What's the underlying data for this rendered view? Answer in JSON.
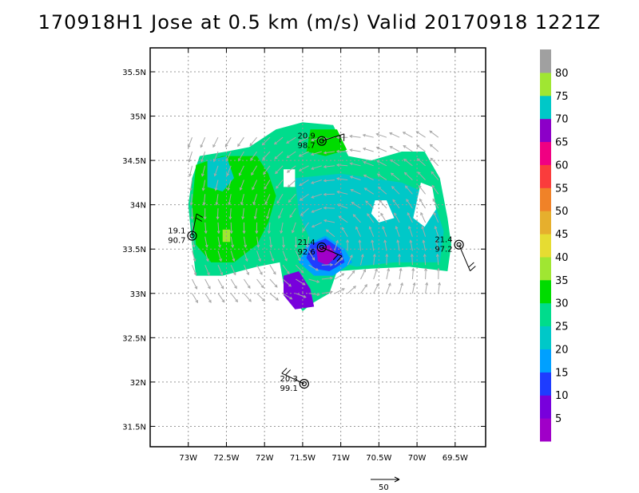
{
  "chart_data": {
    "type": "heatmap",
    "title": "170918H1 Jose at 0.5 km (m/s) Valid 20170918 1221Z",
    "xlim": [
      -73.5,
      -69.1
    ],
    "ylim": [
      31.27,
      35.77
    ],
    "x_ticks": [
      {
        "value": -73.0,
        "label": "73W"
      },
      {
        "value": -72.5,
        "label": "72.5W"
      },
      {
        "value": -72.0,
        "label": "72W"
      },
      {
        "value": -71.5,
        "label": "71.5W"
      },
      {
        "value": -71.0,
        "label": "71W"
      },
      {
        "value": -70.5,
        "label": "70.5W"
      },
      {
        "value": -70.0,
        "label": "70W"
      },
      {
        "value": -69.5,
        "label": "69.5W"
      }
    ],
    "y_ticks": [
      {
        "value": 35.5,
        "label": "35.5N"
      },
      {
        "value": 35.0,
        "label": "35N"
      },
      {
        "value": 34.5,
        "label": "34.5N"
      },
      {
        "value": 34.0,
        "label": "34N"
      },
      {
        "value": 33.5,
        "label": "33.5N"
      },
      {
        "value": 33.0,
        "label": "33N"
      },
      {
        "value": 32.5,
        "label": "32.5N"
      },
      {
        "value": 32.0,
        "label": "32N"
      },
      {
        "value": 31.5,
        "label": "31.5N"
      }
    ],
    "grid": true,
    "colorbar": {
      "labels": [
        "5",
        "10",
        "15",
        "20",
        "25",
        "30",
        "35",
        "40",
        "45",
        "50",
        "55",
        "60",
        "65",
        "70",
        "75",
        "80"
      ],
      "colors": [
        "#a000c8",
        "#7800dc",
        "#1e3cff",
        "#00a0ff",
        "#00c8c8",
        "#00dc8c",
        "#00dc00",
        "#a0e632",
        "#e6dc32",
        "#e6af2d",
        "#f08228",
        "#fa3c3c",
        "#f00082",
        "#8c00c8",
        "#00c8c8",
        "#a0e632",
        "#a0a0a0"
      ]
    },
    "regions": [
      {
        "speed_class": 30,
        "polygon": [
          [
            -72.85,
            34.55
          ],
          [
            -72.5,
            34.6
          ],
          [
            -72.2,
            34.65
          ],
          [
            -71.85,
            34.85
          ],
          [
            -71.5,
            34.93
          ],
          [
            -71.1,
            34.9
          ],
          [
            -70.9,
            34.55
          ],
          [
            -70.6,
            34.5
          ],
          [
            -70.2,
            34.6
          ],
          [
            -69.9,
            34.6
          ],
          [
            -69.7,
            34.3
          ],
          [
            -69.6,
            33.85
          ],
          [
            -69.55,
            33.55
          ],
          [
            -69.6,
            33.25
          ],
          [
            -70.1,
            33.3
          ],
          [
            -70.6,
            33.28
          ],
          [
            -71.05,
            33.25
          ],
          [
            -71.15,
            33.0
          ],
          [
            -71.35,
            32.9
          ],
          [
            -71.5,
            32.8
          ],
          [
            -71.75,
            33.1
          ],
          [
            -71.8,
            33.35
          ],
          [
            -72.1,
            33.3
          ],
          [
            -72.55,
            33.2
          ],
          [
            -72.9,
            33.2
          ],
          [
            -72.95,
            33.55
          ],
          [
            -73.0,
            34.0
          ],
          [
            -72.95,
            34.3
          ]
        ]
      },
      {
        "speed_class": 25,
        "polygon": [
          [
            -71.6,
            34.3
          ],
          [
            -71.0,
            34.35
          ],
          [
            -70.6,
            34.3
          ],
          [
            -70.2,
            34.25
          ],
          [
            -69.8,
            34.1
          ],
          [
            -69.65,
            33.7
          ],
          [
            -69.7,
            33.35
          ],
          [
            -70.3,
            33.35
          ],
          [
            -70.8,
            33.3
          ],
          [
            -71.2,
            33.4
          ],
          [
            -71.4,
            33.6
          ],
          [
            -71.55,
            33.9
          ]
        ]
      },
      {
        "speed_class": 35,
        "polygon": [
          [
            -72.9,
            34.45
          ],
          [
            -72.55,
            34.55
          ],
          [
            -72.1,
            34.55
          ],
          [
            -71.95,
            34.35
          ],
          [
            -71.85,
            34.1
          ],
          [
            -71.95,
            33.8
          ],
          [
            -72.1,
            33.55
          ],
          [
            -72.4,
            33.35
          ],
          [
            -72.7,
            33.35
          ],
          [
            -72.9,
            33.55
          ],
          [
            -72.95,
            34.0
          ]
        ]
      },
      {
        "speed_class": 35,
        "polygon": [
          [
            -71.4,
            34.85
          ],
          [
            -71.05,
            34.85
          ],
          [
            -70.92,
            34.62
          ],
          [
            -71.2,
            34.55
          ],
          [
            -71.45,
            34.6
          ]
        ]
      },
      {
        "speed_class": 25,
        "polygon": [
          [
            -72.75,
            34.5
          ],
          [
            -72.5,
            34.55
          ],
          [
            -72.4,
            34.3
          ],
          [
            -72.55,
            34.15
          ],
          [
            -72.75,
            34.2
          ]
        ]
      },
      {
        "speed_class": 40,
        "polygon": [
          [
            -72.55,
            33.72
          ],
          [
            -72.45,
            33.72
          ],
          [
            -72.45,
            33.58
          ],
          [
            -72.55,
            33.58
          ]
        ]
      },
      {
        "speed_class": 20,
        "polygon": [
          [
            -71.45,
            33.55
          ],
          [
            -71.2,
            33.65
          ],
          [
            -70.95,
            33.5
          ],
          [
            -70.85,
            33.35
          ],
          [
            -71.1,
            33.2
          ],
          [
            -71.35,
            33.2
          ],
          [
            -71.55,
            33.35
          ]
        ]
      },
      {
        "speed_class": 15,
        "polygon": [
          [
            -71.4,
            33.55
          ],
          [
            -71.2,
            33.62
          ],
          [
            -71.0,
            33.5
          ],
          [
            -70.95,
            33.35
          ],
          [
            -71.15,
            33.25
          ],
          [
            -71.35,
            33.28
          ],
          [
            -71.45,
            33.4
          ]
        ]
      },
      {
        "speed_class": 5,
        "polygon": [
          [
            -71.32,
            33.5
          ],
          [
            -71.15,
            33.55
          ],
          [
            -71.05,
            33.42
          ],
          [
            -71.18,
            33.32
          ],
          [
            -71.3,
            33.36
          ]
        ]
      },
      {
        "speed_class": 10,
        "polygon": [
          [
            -71.75,
            33.2
          ],
          [
            -71.55,
            33.25
          ],
          [
            -71.4,
            33.05
          ],
          [
            -71.35,
            32.85
          ],
          [
            -71.6,
            32.82
          ],
          [
            -71.75,
            32.98
          ]
        ]
      },
      {
        "speed_class": 0,
        "polygon": [
          [
            -71.75,
            34.4
          ],
          [
            -71.6,
            34.4
          ],
          [
            -71.6,
            34.2
          ],
          [
            -71.75,
            34.2
          ]
        ]
      },
      {
        "speed_class": 0,
        "polygon": [
          [
            -70.55,
            34.05
          ],
          [
            -70.4,
            34.05
          ],
          [
            -70.3,
            33.85
          ],
          [
            -70.5,
            33.8
          ],
          [
            -70.6,
            33.9
          ]
        ]
      },
      {
        "speed_class": 0,
        "polygon": [
          [
            -69.95,
            34.25
          ],
          [
            -69.8,
            34.2
          ],
          [
            -69.75,
            33.95
          ],
          [
            -69.9,
            33.75
          ],
          [
            -70.05,
            33.85
          ]
        ]
      }
    ],
    "stations": [
      {
        "lon": -71.25,
        "lat": 34.72,
        "label1": "20.9",
        "label2": "98.7"
      },
      {
        "lon": -72.95,
        "lat": 33.65,
        "label1": "19.1",
        "label2": "90.7"
      },
      {
        "lon": -71.25,
        "lat": 33.52,
        "label1": "21.4",
        "label2": "92.6"
      },
      {
        "lon": -69.45,
        "lat": 33.55,
        "label1": "21.4",
        "label2": "97.2"
      },
      {
        "lon": -71.48,
        "lat": 31.98,
        "label1": "20.3",
        "label2": "99.1"
      }
    ],
    "reference_vector": {
      "label": "50"
    }
  }
}
